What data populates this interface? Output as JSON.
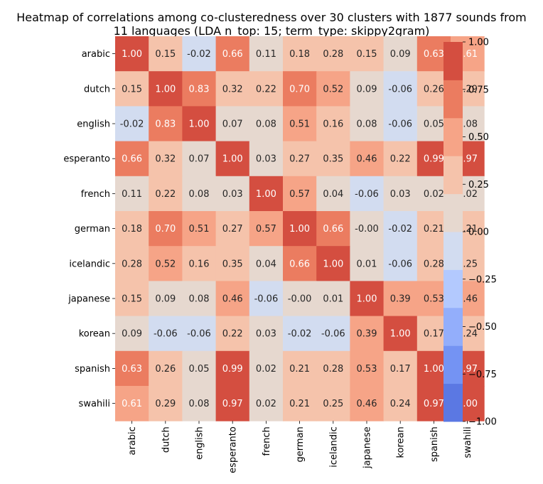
{
  "chart_data": {
    "type": "heatmap",
    "title_lines": [
      "Heatmap of correlations among co-clusteredness over 30 clusters with 1877 sounds from",
      "11 languages (LDA n_top: 15; term_type: skippy2gram)"
    ],
    "rows": [
      "arabic",
      "dutch",
      "english",
      "esperanto",
      "french",
      "german",
      "icelandic",
      "japanese",
      "korean",
      "spanish",
      "swahili"
    ],
    "columns": [
      "arabic",
      "dutch",
      "english",
      "esperanto",
      "french",
      "german",
      "icelandic",
      "japanese",
      "korean",
      "spanish",
      "swahili"
    ],
    "values": [
      [
        1.0,
        0.15,
        -0.02,
        0.66,
        0.11,
        0.18,
        0.28,
        0.15,
        0.09,
        0.63,
        0.61
      ],
      [
        0.15,
        1.0,
        0.83,
        0.32,
        0.22,
        0.7,
        0.52,
        0.09,
        -0.06,
        0.26,
        0.29
      ],
      [
        -0.02,
        0.83,
        1.0,
        0.07,
        0.08,
        0.51,
        0.16,
        0.08,
        -0.06,
        0.05,
        0.08
      ],
      [
        0.66,
        0.32,
        0.07,
        1.0,
        0.03,
        0.27,
        0.35,
        0.46,
        0.22,
        0.99,
        0.97
      ],
      [
        0.11,
        0.22,
        0.08,
        0.03,
        1.0,
        0.57,
        0.04,
        -0.06,
        0.03,
        0.02,
        0.02
      ],
      [
        0.18,
        0.7,
        0.51,
        0.27,
        0.57,
        1.0,
        0.66,
        -0.0,
        -0.02,
        0.21,
        0.21
      ],
      [
        0.28,
        0.52,
        0.16,
        0.35,
        0.04,
        0.66,
        1.0,
        0.01,
        -0.06,
        0.28,
        0.25
      ],
      [
        0.15,
        0.09,
        0.08,
        0.46,
        -0.06,
        -0.0,
        0.01,
        1.0,
        0.39,
        0.53,
        0.46
      ],
      [
        0.09,
        -0.06,
        -0.06,
        0.22,
        0.03,
        -0.02,
        -0.06,
        0.39,
        1.0,
        0.17,
        0.24
      ],
      [
        0.63,
        0.26,
        0.05,
        0.99,
        0.02,
        0.21,
        0.28,
        0.53,
        0.17,
        1.0,
        0.97
      ],
      [
        0.61,
        0.29,
        0.08,
        0.97,
        0.02,
        0.21,
        0.25,
        0.46,
        0.24,
        0.97,
        1.0
      ]
    ],
    "value_format": "2 decimals",
    "colorbar": {
      "range": [
        -1.0,
        1.0
      ],
      "ticks": [
        "1.00",
        "0.75",
        "0.50",
        "0.25",
        "0.00",
        "−0.25",
        "−0.50",
        "−0.75",
        "−1.00"
      ],
      "levels": [
        -1.0,
        -0.875,
        -0.75,
        -0.625,
        -0.5,
        -0.375,
        -0.25,
        -0.125,
        0.0,
        0.125,
        0.25,
        0.375,
        0.5,
        0.625,
        0.75,
        0.875,
        1.0
      ],
      "colors": [
        "#5b78e3",
        "#7493f3",
        "#93aefb",
        "#b3c9fe",
        "#d2dcf0",
        "#e6d8cf",
        "#f5c3ab",
        "#f6a487",
        "#eb7c60",
        "#d44e40"
      ],
      "color_note": "colors ordered from bin [-1,-0.75] ... ; bins: [-1,-0.75],[-0.75,-0.625],[-0.625,-0.5],[-0.5,-0.25]... approximated as 8 coarse + 2 center bins",
      "position": "right"
    },
    "text_colors": {
      "light": "#ffffff",
      "dark": "#262626"
    }
  }
}
